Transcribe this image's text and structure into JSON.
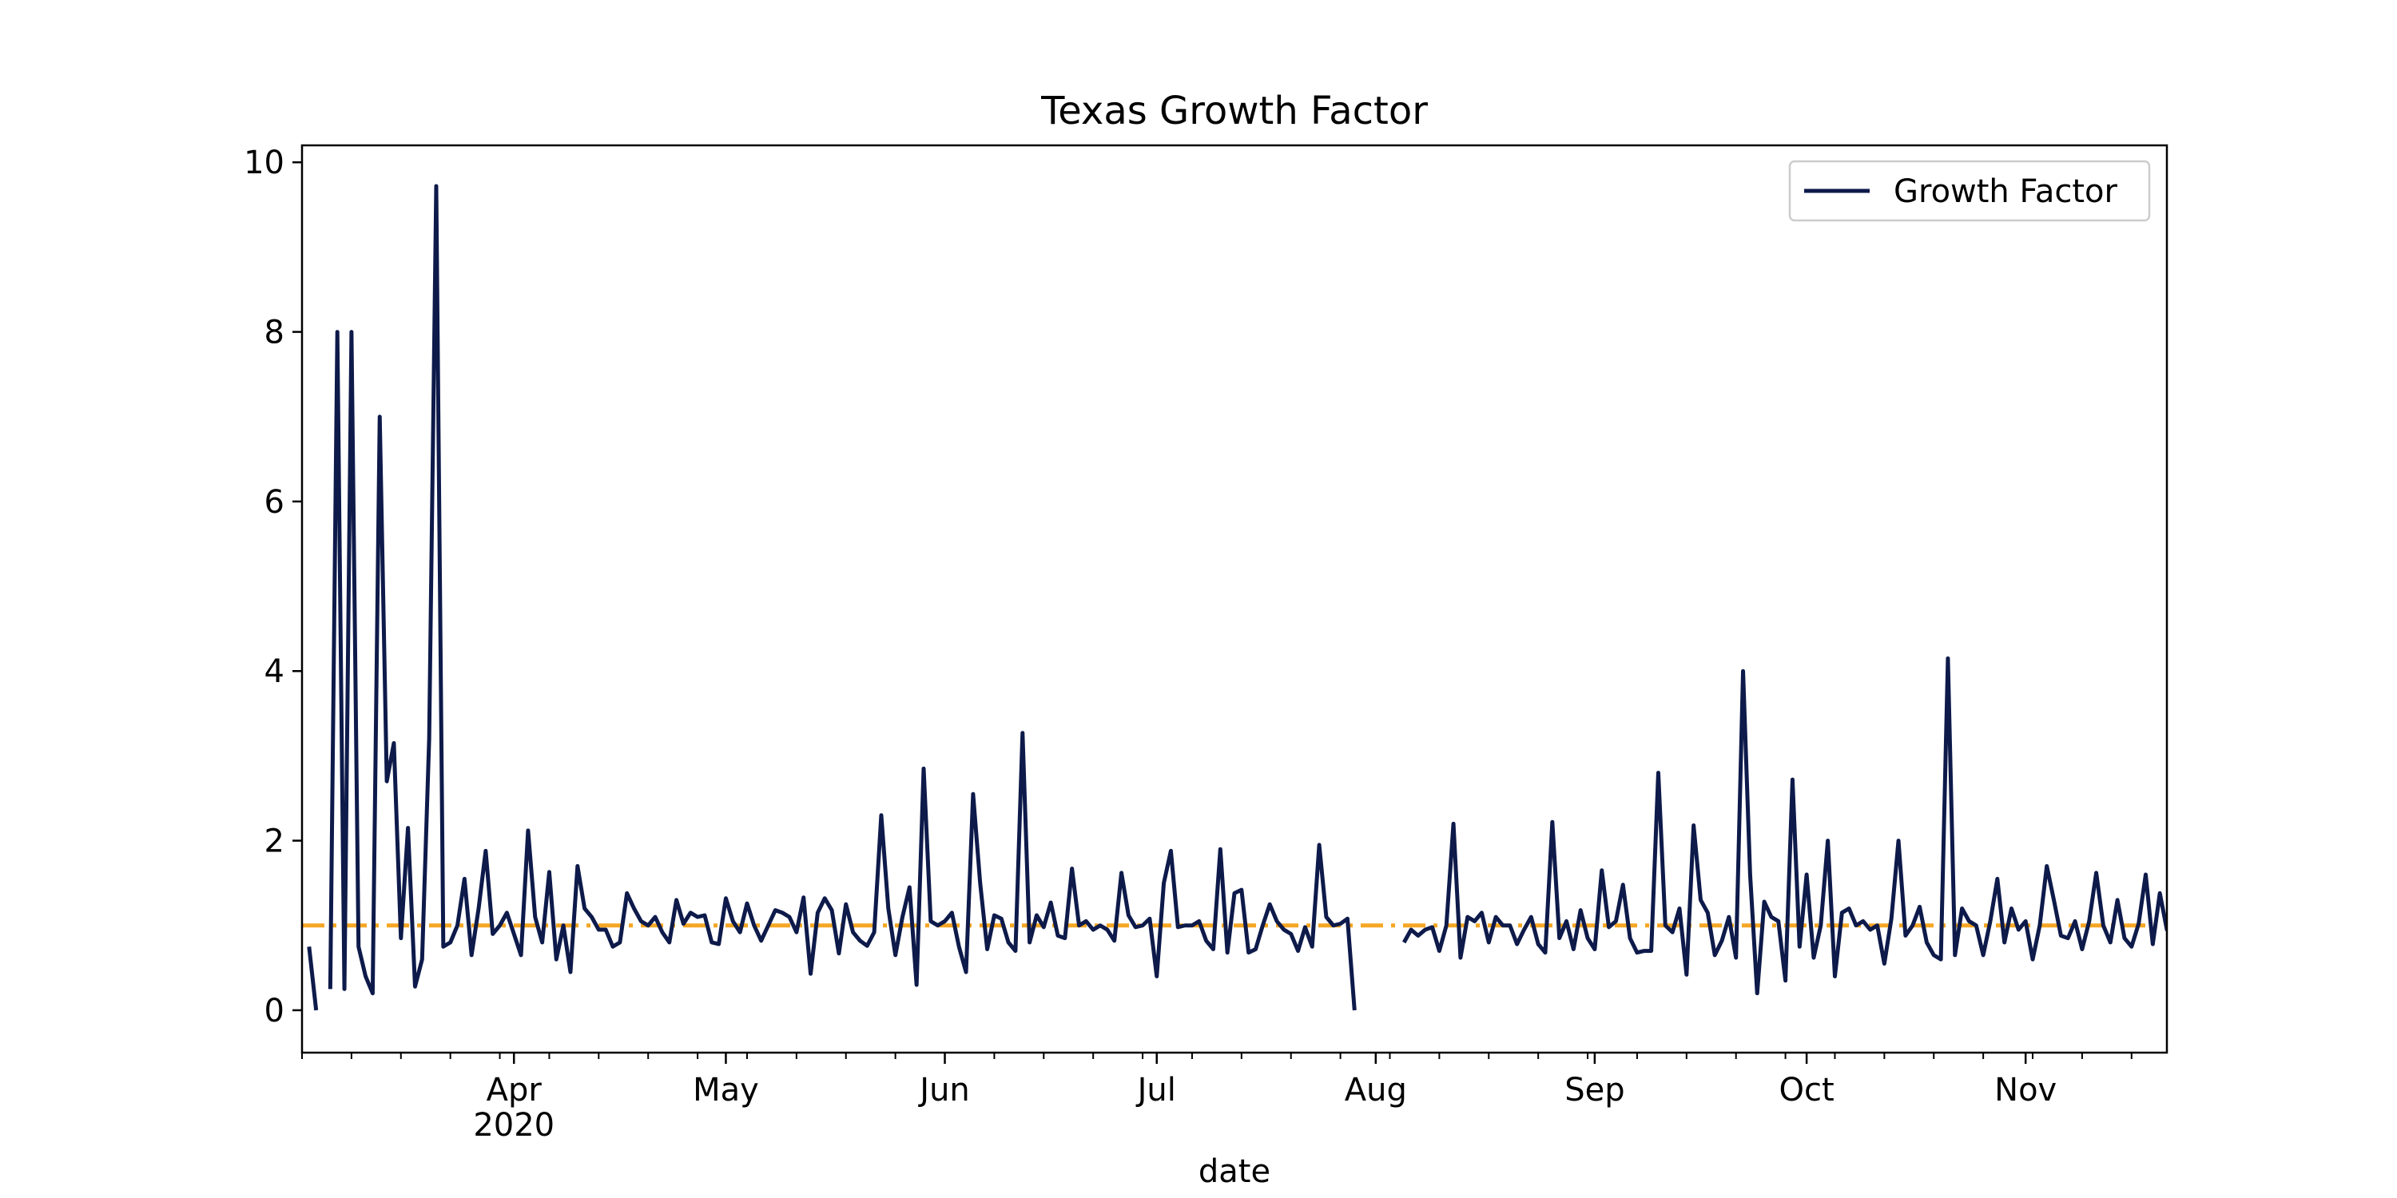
{
  "chart_data": {
    "type": "line",
    "title": "Texas Growth Factor",
    "xlabel": "date",
    "ylabel": "",
    "x_range": [
      "2020-03-02",
      "2020-11-21"
    ],
    "ylim": [
      -0.5,
      10.2
    ],
    "y_ticks": [
      0,
      2,
      4,
      6,
      8,
      10
    ],
    "y_tick_labels": [
      "0",
      "2",
      "4",
      "6",
      "8",
      "10"
    ],
    "x_ticks": [
      {
        "date": "2020-04-01",
        "label": "Apr",
        "sublabel": "2020"
      },
      {
        "date": "2020-05-01",
        "label": "May"
      },
      {
        "date": "2020-06-01",
        "label": "Jun"
      },
      {
        "date": "2020-07-01",
        "label": "Jul"
      },
      {
        "date": "2020-08-01",
        "label": "Aug"
      },
      {
        "date": "2020-09-01",
        "label": "Sep"
      },
      {
        "date": "2020-10-01",
        "label": "Oct"
      },
      {
        "date": "2020-11-01",
        "label": "Nov"
      }
    ],
    "minor_x_ticks": [
      "2020-03-02",
      "2020-03-09",
      "2020-03-16",
      "2020-03-23",
      "2020-03-30",
      "2020-04-06",
      "2020-04-13",
      "2020-04-20",
      "2020-04-27",
      "2020-05-04",
      "2020-05-11",
      "2020-05-18",
      "2020-05-25",
      "2020-06-01",
      "2020-06-08",
      "2020-06-15",
      "2020-06-22",
      "2020-06-29",
      "2020-07-06",
      "2020-07-13",
      "2020-07-20",
      "2020-07-27",
      "2020-08-03",
      "2020-08-10",
      "2020-08-17",
      "2020-08-24",
      "2020-08-31",
      "2020-09-07",
      "2020-09-14",
      "2020-09-21",
      "2020-09-28",
      "2020-10-05",
      "2020-10-12",
      "2020-10-19",
      "2020-10-26",
      "2020-11-02",
      "2020-11-09",
      "2020-11-16"
    ],
    "grid": false,
    "legend": {
      "position": "top-right",
      "entries": [
        "Growth Factor"
      ]
    },
    "reference_line": {
      "y": 1.0,
      "style": "dashdot",
      "color": "#f5a623"
    },
    "colors": {
      "series": "#0d1a4a",
      "reference": "#f5a623"
    },
    "series": [
      {
        "name": "Growth Factor",
        "segments": [
          {
            "start": "2020-03-03",
            "values": [
              0.75,
              0.0
            ]
          },
          {
            "start": "2020-03-06",
            "values": [
              0.25,
              8.0,
              0.25,
              8.0,
              0.75,
              0.4,
              0.2,
              7.0,
              2.7,
              3.15,
              0.85,
              2.15,
              0.28,
              0.6,
              3.2,
              9.72,
              0.75,
              0.8,
              1.0,
              1.55,
              0.65,
              1.2,
              1.88,
              0.9,
              1.0,
              1.15,
              0.9,
              0.65,
              2.12,
              1.1,
              0.8,
              1.63,
              0.6,
              1.0,
              0.45,
              1.7,
              1.2,
              1.1,
              0.95,
              0.95,
              0.75,
              0.8,
              1.38,
              1.2,
              1.05,
              1.0,
              1.1,
              0.92,
              0.8,
              1.3,
              1.02,
              1.15,
              1.1,
              1.12,
              0.8,
              0.78,
              1.32,
              1.05,
              0.92,
              1.26,
              1.0,
              0.82,
              1.0,
              1.18,
              1.15,
              1.1,
              0.92,
              1.33,
              0.43,
              1.15,
              1.32,
              1.18,
              0.67,
              1.25,
              0.92,
              0.82,
              0.76,
              0.92,
              2.3,
              1.2,
              0.65,
              1.1,
              1.45,
              0.3,
              2.85,
              1.05,
              1.0,
              1.05,
              1.15,
              0.75,
              0.45,
              2.55,
              1.5,
              0.72,
              1.12,
              1.08,
              0.8,
              0.7,
              3.27,
              0.8,
              1.12,
              0.98,
              1.27,
              0.88,
              0.85,
              1.67,
              1.0,
              1.05,
              0.95,
              1.0,
              0.95,
              0.82,
              1.62,
              1.12,
              0.98,
              1.0,
              1.08,
              0.4,
              1.5,
              1.88,
              0.98,
              1.0,
              1.0,
              1.05,
              0.82,
              0.72,
              1.9,
              0.68,
              1.38,
              1.42,
              0.68,
              0.72,
              1.0,
              1.25,
              1.05,
              0.95,
              0.9,
              0.7,
              0.98,
              0.75,
              1.95,
              1.1,
              1.0,
              1.02,
              1.08,
              0.0
            ]
          },
          {
            "start": "2020-08-05",
            "values": [
              0.8,
              0.95,
              0.88,
              0.95,
              0.98,
              0.7,
              1.0,
              2.2,
              0.62,
              1.1,
              1.05,
              1.15,
              0.8,
              1.1,
              1.0,
              1.0,
              0.78,
              0.95,
              1.1,
              0.78,
              0.68,
              2.22,
              0.85,
              1.05,
              0.72,
              1.18,
              0.85,
              0.72,
              1.65,
              0.98,
              1.05,
              1.48,
              0.85,
              0.68,
              0.7,
              0.7,
              2.8,
              1.0,
              0.92,
              1.2,
              0.42,
              2.18,
              1.3,
              1.15,
              0.65,
              0.82,
              1.1,
              0.62,
              4.0,
              1.6,
              0.2,
              1.28,
              1.1,
              1.05,
              0.35,
              2.72,
              0.75,
              1.6,
              0.62,
              1.0,
              2.0,
              0.4,
              1.15,
              1.2,
              1.0,
              1.05,
              0.95,
              1.0,
              0.55,
              1.08,
              2.0,
              0.88,
              1.0,
              1.22,
              0.8,
              0.65,
              0.6,
              4.15,
              0.65,
              1.2,
              1.05,
              1.0,
              0.65,
              1.05,
              1.55,
              0.8,
              1.2,
              0.95,
              1.05,
              0.6,
              1.0,
              1.7,
              1.3,
              0.88,
              0.85,
              1.05,
              0.72,
              1.05,
              1.62,
              1.0,
              0.8,
              1.3,
              0.85,
              0.75,
              1.02,
              1.6,
              0.78,
              1.38,
              0.95,
              1.08,
              0.68,
              0.75
            ]
          }
        ]
      }
    ]
  }
}
